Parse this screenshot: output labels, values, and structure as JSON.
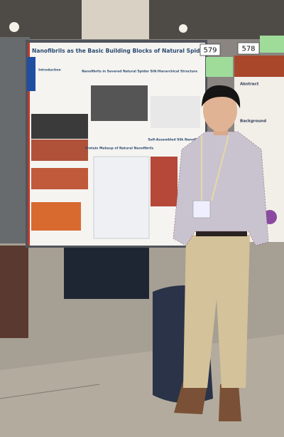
{
  "poster": {
    "title": "Nanofibrils as the Basic Building Blocks of Natural Spider Silk",
    "sections": [
      "Introduction",
      "Nanofibrils in Severed Natural Spider Silk",
      "Hierarchical Structure",
      "Protein Makeup of Natural Nanofibrils",
      "Self-Assembled Silk Nanofibrils"
    ]
  },
  "boards": {
    "left_number": "579",
    "right_number": "578"
  },
  "right_poster": {
    "sections": [
      "Abstract",
      "Background"
    ]
  }
}
